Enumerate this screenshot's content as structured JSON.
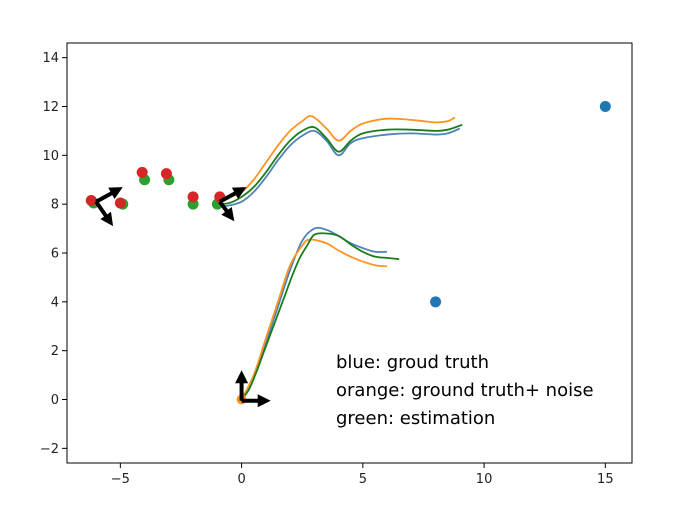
{
  "chart_data": {
    "type": "line",
    "title": "",
    "xlabel": "",
    "ylabel": "",
    "xlim": [
      -7.2,
      16.1
    ],
    "ylim": [
      -2.6,
      14.6
    ],
    "grid": false,
    "x_ticks": [
      -5,
      0,
      5,
      10,
      15
    ],
    "y_ticks": [
      -2,
      0,
      2,
      4,
      6,
      8,
      10,
      12,
      14
    ],
    "annotations": [
      "blue: groud truth",
      "orange: ground truth+ noise",
      "green: estimation"
    ],
    "colors": {
      "blue": "#4f83b8",
      "orange": "#ff9422",
      "green": "#1a7d1a",
      "scatter_blue": "#1f77b4",
      "red": "#d62728",
      "scatter_green": "#2ca02c",
      "arrow": "#000000"
    },
    "series": [
      {
        "color": "blue",
        "x": [
          -1,
          -0.5,
          0,
          0.5,
          1,
          1.5,
          2,
          2.5,
          3,
          3.5,
          4,
          4.5,
          5,
          6,
          7,
          8,
          8.5,
          9
        ],
        "y": [
          7.9,
          7.95,
          8.1,
          8.5,
          9.1,
          9.8,
          10.4,
          10.8,
          11.0,
          10.6,
          10.0,
          10.5,
          10.7,
          10.85,
          10.9,
          10.85,
          10.9,
          11.1
        ]
      },
      {
        "color": "orange",
        "x": [
          -1,
          -0.5,
          0,
          0.5,
          1,
          1.5,
          2,
          2.5,
          2.9,
          3.5,
          4,
          4.5,
          5,
          6,
          7,
          8,
          8.5,
          8.8
        ],
        "y": [
          8.2,
          8.3,
          8.5,
          9.0,
          9.7,
          10.4,
          11.0,
          11.4,
          11.6,
          11.1,
          10.6,
          11.0,
          11.3,
          11.5,
          11.45,
          11.35,
          11.4,
          11.55
        ]
      },
      {
        "color": "green",
        "x": [
          -1,
          -0.5,
          0,
          0.5,
          1,
          1.5,
          2,
          2.5,
          3,
          3.5,
          4,
          4.5,
          5,
          6,
          7,
          8,
          8.5,
          9.1
        ],
        "y": [
          8.0,
          8.05,
          8.3,
          8.7,
          9.3,
          10.0,
          10.6,
          11.0,
          11.15,
          10.7,
          10.15,
          10.6,
          10.9,
          11.05,
          11.05,
          11.0,
          11.05,
          11.25
        ]
      },
      {
        "color": "blue",
        "x": [
          0,
          0.5,
          1,
          1.5,
          2,
          2.5,
          3,
          3.5,
          4,
          4.5,
          5,
          5.5,
          6
        ],
        "y": [
          0,
          0.9,
          2.3,
          3.8,
          5.3,
          6.5,
          7.0,
          6.95,
          6.7,
          6.4,
          6.2,
          6.05,
          6.05
        ]
      },
      {
        "color": "orange",
        "x": [
          0,
          0.5,
          1,
          1.5,
          2,
          2.5,
          2.8,
          3.5,
          4,
          4.5,
          5,
          5.5,
          6
        ],
        "y": [
          0,
          1.0,
          2.5,
          4.0,
          5.5,
          6.3,
          6.55,
          6.4,
          6.1,
          5.85,
          5.65,
          5.5,
          5.45
        ]
      },
      {
        "color": "green",
        "x": [
          0,
          0.3,
          0.6,
          0.9,
          1.2,
          1.5,
          1.8,
          2.1,
          2.4,
          2.7,
          3,
          3.5,
          4,
          4.5,
          5,
          5.5,
          6,
          6.5
        ],
        "y": [
          0,
          0.4,
          1.1,
          1.9,
          2.7,
          3.5,
          4.3,
          5.1,
          5.8,
          6.3,
          6.75,
          6.8,
          6.7,
          6.35,
          6.05,
          5.85,
          5.8,
          5.75
        ]
      }
    ],
    "scatter": [
      {
        "color": "scatter_blue",
        "points": [
          [
            15,
            12
          ],
          [
            8,
            4
          ]
        ]
      },
      {
        "color": "scatter_green",
        "points": [
          [
            -6.1,
            8.05
          ],
          [
            -4.9,
            8.0
          ],
          [
            -4.0,
            9.0
          ],
          [
            -3.0,
            9.0
          ],
          [
            -2.0,
            8.0
          ],
          [
            -1.0,
            8.0
          ]
        ]
      },
      {
        "color": "red",
        "points": [
          [
            -6.2,
            8.15
          ],
          [
            -5.0,
            8.05
          ],
          [
            -4.1,
            9.3
          ],
          [
            -3.1,
            9.25
          ],
          [
            -2.0,
            8.3
          ],
          [
            -0.9,
            8.3
          ]
        ]
      }
    ],
    "origin_marker": {
      "color": "orange",
      "point": [
        0,
        0
      ]
    },
    "arrows": [
      {
        "from": [
          -6.0,
          8.1
        ],
        "to": [
          -4.9,
          8.7
        ]
      },
      {
        "from": [
          -6.0,
          8.1
        ],
        "to": [
          -5.3,
          7.1
        ]
      },
      {
        "from": [
          -0.9,
          8.1
        ],
        "to": [
          0.2,
          8.7
        ]
      },
      {
        "from": [
          -0.9,
          8.1
        ],
        "to": [
          -0.3,
          7.3
        ]
      },
      {
        "from": [
          0,
          -0.05
        ],
        "to": [
          1.2,
          -0.05
        ]
      },
      {
        "from": [
          0,
          -0.05
        ],
        "to": [
          0,
          1.2
        ]
      }
    ]
  }
}
